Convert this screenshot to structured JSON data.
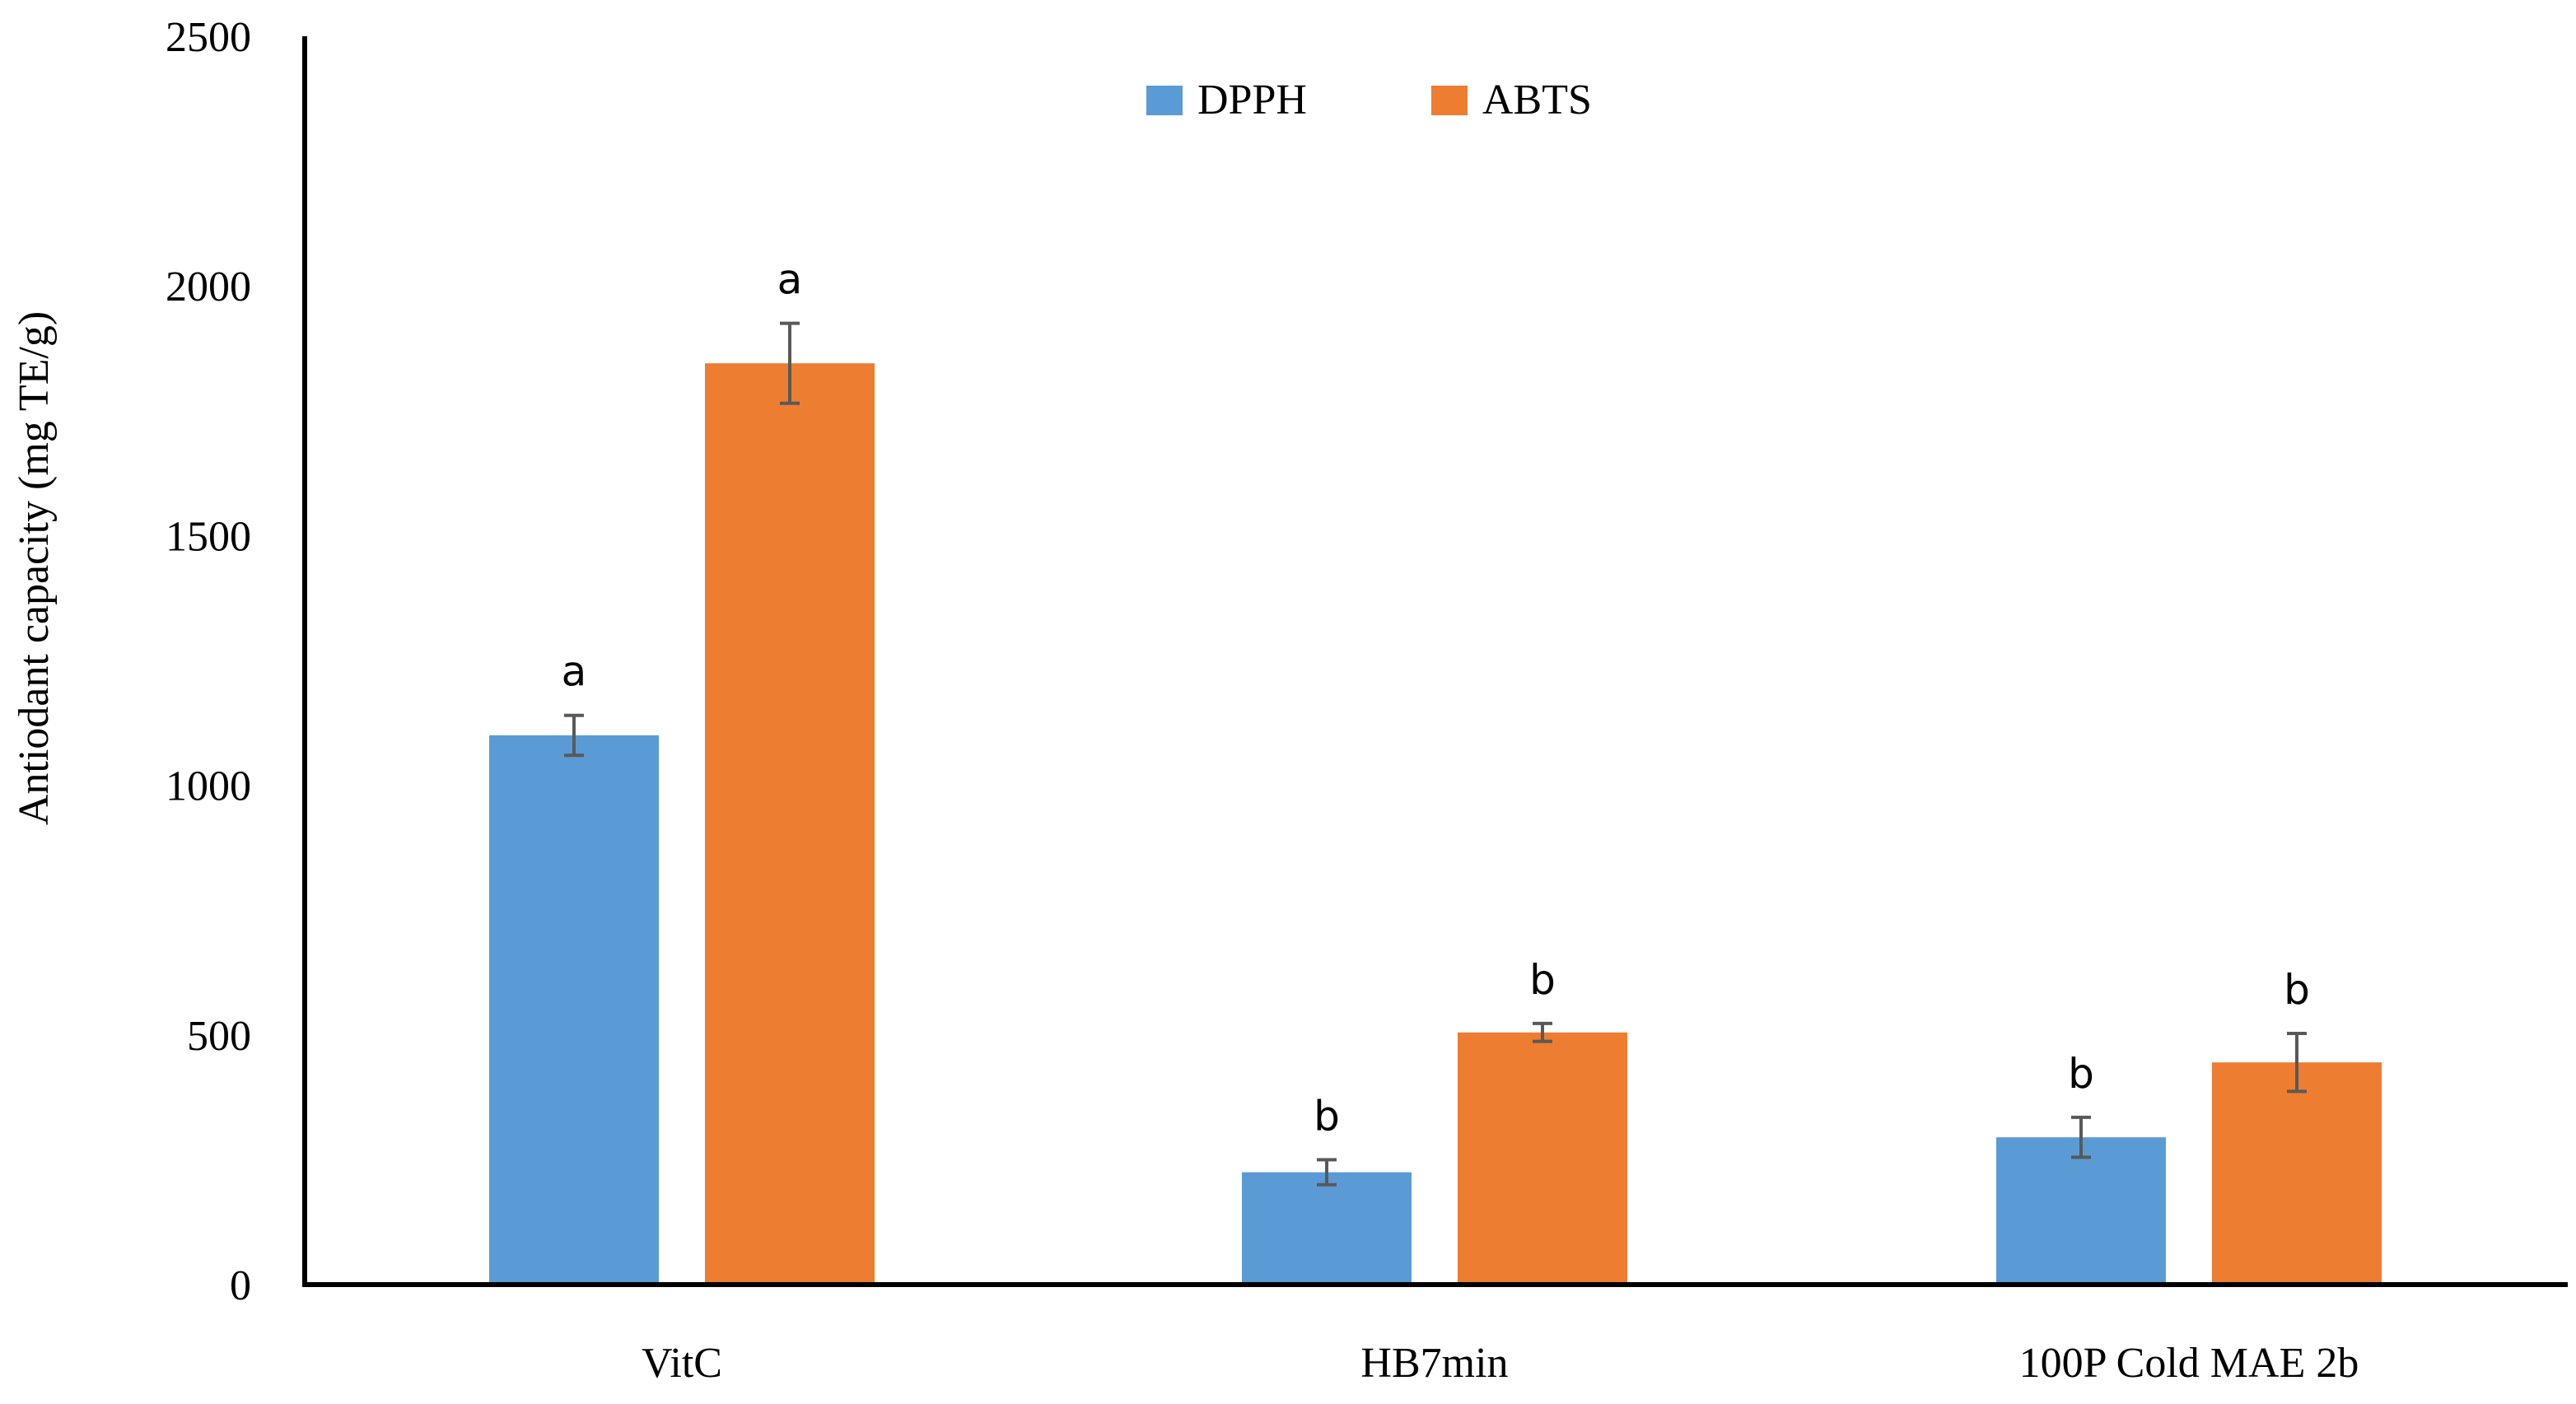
{
  "chart_data": {
    "type": "bar",
    "title": "",
    "xlabel": "",
    "ylabel": "Antiodant capacity (mg TE/g)",
    "ylim": [
      0,
      2500
    ],
    "yticks": [
      0,
      500,
      1000,
      1500,
      2000,
      2500
    ],
    "grid": false,
    "legend_position": "top-center",
    "categories": [
      "VitC",
      "HB7min",
      "100P Cold MAE 2b"
    ],
    "series": [
      {
        "name": "DPPH",
        "color": "#5B9BD5",
        "values": [
          1100,
          225,
          295
        ],
        "errors": [
          40,
          25,
          40
        ],
        "labels": [
          "a",
          "b",
          "b"
        ]
      },
      {
        "name": "ABTS",
        "color": "#ED7D31",
        "values": [
          1845,
          505,
          445
        ],
        "errors": [
          80,
          18,
          58
        ],
        "labels": [
          "a",
          "b",
          "b"
        ]
      }
    ]
  }
}
